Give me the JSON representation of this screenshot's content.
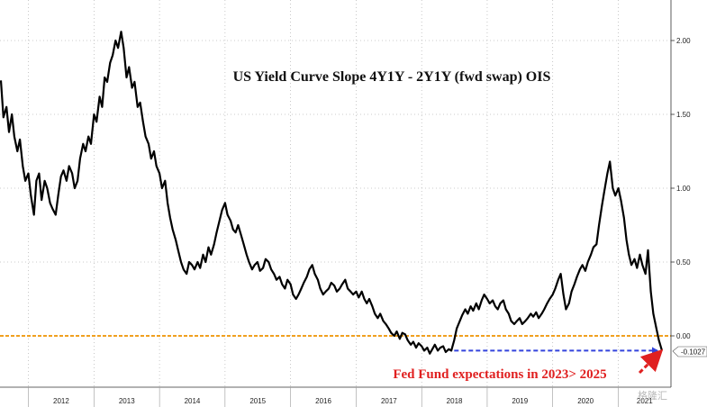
{
  "chart_data": {
    "type": "line",
    "title": "US Yield Curve Slope 4Y1Y - 2Y1Y (fwd swap) OIS",
    "xlabel": "",
    "ylabel": "",
    "x_tick_labels": [
      "2012",
      "2013",
      "2014",
      "2015",
      "2016",
      "2017",
      "2018",
      "2019",
      "2020",
      "2021"
    ],
    "y_tick_labels": [
      "2.00",
      "1.50",
      "1.00",
      "0.50",
      "0.00"
    ],
    "ylim": [
      -0.4,
      2.25
    ],
    "grid": true,
    "last_value_label": "-0.1027",
    "annotation": "Fed Fund expectations in 2023> 2025",
    "reference_line": 0.0,
    "series": [
      {
        "name": "",
        "color": "#000000",
        "points": [
          [
            "2011-08-01",
            1.73
          ],
          [
            "2011-08-15",
            1.48
          ],
          [
            "2011-09-01",
            1.55
          ],
          [
            "2011-09-15",
            1.38
          ],
          [
            "2011-10-01",
            1.5
          ],
          [
            "2011-10-15",
            1.35
          ],
          [
            "2011-11-01",
            1.25
          ],
          [
            "2011-11-15",
            1.33
          ],
          [
            "2011-12-01",
            1.15
          ],
          [
            "2011-12-15",
            1.05
          ],
          [
            "2012-01-01",
            1.1
          ],
          [
            "2012-01-15",
            0.95
          ],
          [
            "2012-02-01",
            0.82
          ],
          [
            "2012-02-15",
            1.05
          ],
          [
            "2012-03-01",
            1.1
          ],
          [
            "2012-03-15",
            0.92
          ],
          [
            "2012-04-01",
            1.05
          ],
          [
            "2012-04-15",
            1.0
          ],
          [
            "2012-05-01",
            0.9
          ],
          [
            "2012-05-15",
            0.86
          ],
          [
            "2012-06-01",
            0.82
          ],
          [
            "2012-06-15",
            0.95
          ],
          [
            "2012-07-01",
            1.08
          ],
          [
            "2012-07-15",
            1.12
          ],
          [
            "2012-08-01",
            1.05
          ],
          [
            "2012-08-15",
            1.15
          ],
          [
            "2012-09-01",
            1.1
          ],
          [
            "2012-09-15",
            1.0
          ],
          [
            "2012-10-01",
            1.05
          ],
          [
            "2012-10-15",
            1.2
          ],
          [
            "2012-11-01",
            1.3
          ],
          [
            "2012-11-15",
            1.25
          ],
          [
            "2012-12-01",
            1.35
          ],
          [
            "2012-12-15",
            1.3
          ],
          [
            "2013-01-01",
            1.5
          ],
          [
            "2013-01-15",
            1.45
          ],
          [
            "2013-02-01",
            1.62
          ],
          [
            "2013-02-15",
            1.55
          ],
          [
            "2013-03-01",
            1.75
          ],
          [
            "2013-03-15",
            1.72
          ],
          [
            "2013-04-01",
            1.85
          ],
          [
            "2013-04-15",
            1.9
          ],
          [
            "2013-05-01",
            2.0
          ],
          [
            "2013-05-15",
            1.95
          ],
          [
            "2013-06-01",
            2.06
          ],
          [
            "2013-06-15",
            1.95
          ],
          [
            "2013-07-01",
            1.75
          ],
          [
            "2013-07-15",
            1.82
          ],
          [
            "2013-08-01",
            1.68
          ],
          [
            "2013-08-15",
            1.72
          ],
          [
            "2013-09-01",
            1.55
          ],
          [
            "2013-09-15",
            1.58
          ],
          [
            "2013-10-01",
            1.45
          ],
          [
            "2013-10-15",
            1.35
          ],
          [
            "2013-11-01",
            1.3
          ],
          [
            "2013-11-15",
            1.2
          ],
          [
            "2013-12-01",
            1.25
          ],
          [
            "2013-12-15",
            1.15
          ],
          [
            "2014-01-01",
            1.1
          ],
          [
            "2014-01-15",
            1.0
          ],
          [
            "2014-02-01",
            1.05
          ],
          [
            "2014-02-15",
            0.9
          ],
          [
            "2014-03-01",
            0.8
          ],
          [
            "2014-03-15",
            0.72
          ],
          [
            "2014-04-01",
            0.65
          ],
          [
            "2014-04-15",
            0.58
          ],
          [
            "2014-05-01",
            0.5
          ],
          [
            "2014-05-15",
            0.45
          ],
          [
            "2014-06-01",
            0.42
          ],
          [
            "2014-06-15",
            0.5
          ],
          [
            "2014-07-01",
            0.48
          ],
          [
            "2014-07-15",
            0.45
          ],
          [
            "2014-08-01",
            0.5
          ],
          [
            "2014-08-15",
            0.46
          ],
          [
            "2014-09-01",
            0.55
          ],
          [
            "2014-09-15",
            0.5
          ],
          [
            "2014-10-01",
            0.6
          ],
          [
            "2014-10-15",
            0.55
          ],
          [
            "2014-11-01",
            0.62
          ],
          [
            "2014-11-15",
            0.7
          ],
          [
            "2014-12-01",
            0.78
          ],
          [
            "2014-12-15",
            0.85
          ],
          [
            "2015-01-01",
            0.9
          ],
          [
            "2015-01-15",
            0.82
          ],
          [
            "2015-02-01",
            0.78
          ],
          [
            "2015-02-15",
            0.72
          ],
          [
            "2015-03-01",
            0.7
          ],
          [
            "2015-03-15",
            0.75
          ],
          [
            "2015-04-01",
            0.68
          ],
          [
            "2015-04-15",
            0.62
          ],
          [
            "2015-05-01",
            0.55
          ],
          [
            "2015-05-15",
            0.5
          ],
          [
            "2015-06-01",
            0.45
          ],
          [
            "2015-06-15",
            0.48
          ],
          [
            "2015-07-01",
            0.5
          ],
          [
            "2015-07-15",
            0.44
          ],
          [
            "2015-08-01",
            0.46
          ],
          [
            "2015-08-15",
            0.52
          ],
          [
            "2015-09-01",
            0.5
          ],
          [
            "2015-09-15",
            0.45
          ],
          [
            "2015-10-01",
            0.42
          ],
          [
            "2015-10-15",
            0.38
          ],
          [
            "2015-11-01",
            0.4
          ],
          [
            "2015-11-15",
            0.35
          ],
          [
            "2015-12-01",
            0.32
          ],
          [
            "2015-12-15",
            0.38
          ],
          [
            "2016-01-01",
            0.35
          ],
          [
            "2016-01-15",
            0.28
          ],
          [
            "2016-02-01",
            0.25
          ],
          [
            "2016-02-15",
            0.28
          ],
          [
            "2016-03-01",
            0.32
          ],
          [
            "2016-03-15",
            0.36
          ],
          [
            "2016-04-01",
            0.4
          ],
          [
            "2016-04-15",
            0.45
          ],
          [
            "2016-05-01",
            0.48
          ],
          [
            "2016-05-15",
            0.42
          ],
          [
            "2016-06-01",
            0.38
          ],
          [
            "2016-06-15",
            0.32
          ],
          [
            "2016-07-01",
            0.28
          ],
          [
            "2016-07-15",
            0.3
          ],
          [
            "2016-08-01",
            0.32
          ],
          [
            "2016-08-15",
            0.36
          ],
          [
            "2016-09-01",
            0.34
          ],
          [
            "2016-09-15",
            0.3
          ],
          [
            "2016-10-01",
            0.32
          ],
          [
            "2016-10-15",
            0.35
          ],
          [
            "2016-11-01",
            0.38
          ],
          [
            "2016-11-15",
            0.32
          ],
          [
            "2016-12-01",
            0.3
          ],
          [
            "2016-12-15",
            0.28
          ],
          [
            "2017-01-01",
            0.3
          ],
          [
            "2017-01-15",
            0.26
          ],
          [
            "2017-02-01",
            0.3
          ],
          [
            "2017-02-15",
            0.25
          ],
          [
            "2017-03-01",
            0.22
          ],
          [
            "2017-03-15",
            0.25
          ],
          [
            "2017-04-01",
            0.2
          ],
          [
            "2017-04-15",
            0.15
          ],
          [
            "2017-05-01",
            0.12
          ],
          [
            "2017-05-15",
            0.15
          ],
          [
            "2017-06-01",
            0.1
          ],
          [
            "2017-06-15",
            0.08
          ],
          [
            "2017-07-01",
            0.05
          ],
          [
            "2017-07-15",
            0.02
          ],
          [
            "2017-08-01",
            0.0
          ],
          [
            "2017-08-15",
            0.03
          ],
          [
            "2017-09-01",
            -0.02
          ],
          [
            "2017-09-15",
            0.02
          ],
          [
            "2017-10-01",
            0.01
          ],
          [
            "2017-10-15",
            -0.03
          ],
          [
            "2017-11-01",
            -0.06
          ],
          [
            "2017-11-15",
            -0.04
          ],
          [
            "2017-12-01",
            -0.08
          ],
          [
            "2017-12-15",
            -0.05
          ],
          [
            "2018-01-01",
            -0.07
          ],
          [
            "2018-01-15",
            -0.1
          ],
          [
            "2018-02-01",
            -0.08
          ],
          [
            "2018-02-15",
            -0.12
          ],
          [
            "2018-03-01",
            -0.09
          ],
          [
            "2018-03-15",
            -0.06
          ],
          [
            "2018-04-01",
            -0.1
          ],
          [
            "2018-04-15",
            -0.08
          ],
          [
            "2018-05-01",
            -0.07
          ],
          [
            "2018-05-15",
            -0.11
          ],
          [
            "2018-06-01",
            -0.09
          ],
          [
            "2018-06-15",
            -0.1
          ],
          [
            "2018-07-01",
            -0.03
          ],
          [
            "2018-07-15",
            0.05
          ],
          [
            "2018-08-01",
            0.1
          ],
          [
            "2018-08-15",
            0.14
          ],
          [
            "2018-09-01",
            0.18
          ],
          [
            "2018-09-15",
            0.15
          ],
          [
            "2018-10-01",
            0.2
          ],
          [
            "2018-10-15",
            0.17
          ],
          [
            "2018-11-01",
            0.22
          ],
          [
            "2018-11-15",
            0.18
          ],
          [
            "2018-12-01",
            0.24
          ],
          [
            "2018-12-15",
            0.28
          ],
          [
            "2019-01-01",
            0.25
          ],
          [
            "2019-01-15",
            0.22
          ],
          [
            "2019-02-01",
            0.24
          ],
          [
            "2019-02-15",
            0.2
          ],
          [
            "2019-03-01",
            0.18
          ],
          [
            "2019-03-15",
            0.22
          ],
          [
            "2019-04-01",
            0.24
          ],
          [
            "2019-04-15",
            0.18
          ],
          [
            "2019-05-01",
            0.15
          ],
          [
            "2019-05-15",
            0.1
          ],
          [
            "2019-06-01",
            0.08
          ],
          [
            "2019-06-15",
            0.1
          ],
          [
            "2019-07-01",
            0.12
          ],
          [
            "2019-07-15",
            0.08
          ],
          [
            "2019-08-01",
            0.1
          ],
          [
            "2019-08-15",
            0.12
          ],
          [
            "2019-09-01",
            0.15
          ],
          [
            "2019-09-15",
            0.13
          ],
          [
            "2019-10-01",
            0.16
          ],
          [
            "2019-10-15",
            0.12
          ],
          [
            "2019-11-01",
            0.15
          ],
          [
            "2019-11-15",
            0.18
          ],
          [
            "2019-12-01",
            0.22
          ],
          [
            "2019-12-15",
            0.25
          ],
          [
            "2020-01-01",
            0.28
          ],
          [
            "2020-01-15",
            0.32
          ],
          [
            "2020-02-01",
            0.38
          ],
          [
            "2020-02-15",
            0.42
          ],
          [
            "2020-03-01",
            0.28
          ],
          [
            "2020-03-15",
            0.18
          ],
          [
            "2020-04-01",
            0.22
          ],
          [
            "2020-04-15",
            0.3
          ],
          [
            "2020-05-01",
            0.35
          ],
          [
            "2020-05-15",
            0.4
          ],
          [
            "2020-06-01",
            0.45
          ],
          [
            "2020-06-15",
            0.48
          ],
          [
            "2020-07-01",
            0.44
          ],
          [
            "2020-07-15",
            0.5
          ],
          [
            "2020-08-01",
            0.55
          ],
          [
            "2020-08-15",
            0.6
          ],
          [
            "2020-09-01",
            0.62
          ],
          [
            "2020-09-15",
            0.75
          ],
          [
            "2020-10-01",
            0.88
          ],
          [
            "2020-10-15",
            0.98
          ],
          [
            "2020-11-01",
            1.1
          ],
          [
            "2020-11-15",
            1.18
          ],
          [
            "2020-12-01",
            1.0
          ],
          [
            "2020-12-15",
            0.95
          ],
          [
            "2021-01-01",
            1.0
          ],
          [
            "2021-01-15",
            0.92
          ],
          [
            "2021-02-01",
            0.8
          ],
          [
            "2021-02-15",
            0.65
          ],
          [
            "2021-03-01",
            0.55
          ],
          [
            "2021-03-15",
            0.48
          ],
          [
            "2021-04-01",
            0.52
          ],
          [
            "2021-04-15",
            0.46
          ],
          [
            "2021-05-01",
            0.55
          ],
          [
            "2021-05-15",
            0.48
          ],
          [
            "2021-06-01",
            0.42
          ],
          [
            "2021-06-15",
            0.58
          ],
          [
            "2021-07-01",
            0.3
          ],
          [
            "2021-07-15",
            0.15
          ],
          [
            "2021-08-01",
            0.05
          ],
          [
            "2021-08-15",
            -0.03
          ],
          [
            "2021-09-01",
            -0.1
          ]
        ]
      }
    ]
  },
  "colors": {
    "series_line": "#000000",
    "zero_line": "#f0a020",
    "annotation": "#e02020",
    "dashed_arrow": "#3344dd",
    "gridline": "#bbbbbb",
    "watermark": "#b9b9b9"
  },
  "watermark": "格隆汇"
}
